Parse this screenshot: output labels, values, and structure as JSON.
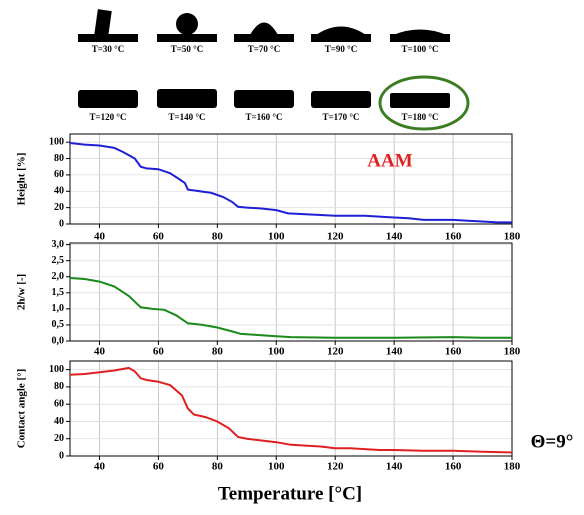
{
  "droplet_images": {
    "labels": [
      "T=30 °C",
      "T=50 °C",
      "T=70 °C",
      "T=90 °C",
      "T=100 °C",
      "T=120 °C",
      "T=140 °C",
      "T=160 °C",
      "T=170 °C",
      "T=180 °C"
    ]
  },
  "chart_data": [
    {
      "type": "line",
      "y_label": "Height [%]",
      "annotation": "AAM",
      "color": "#1f1fd6",
      "grid": true,
      "x": [
        30,
        35,
        40,
        45,
        48,
        52,
        54,
        56,
        60,
        64,
        67,
        69,
        70,
        74,
        78,
        82,
        85,
        87,
        90,
        95,
        100,
        104,
        110,
        120,
        130,
        135,
        140,
        145,
        150,
        155,
        160,
        165,
        170,
        175,
        180
      ],
      "values": [
        99,
        97,
        96,
        93,
        88,
        80,
        70,
        68,
        67,
        62,
        55,
        50,
        42,
        40,
        38,
        33,
        27,
        21,
        20,
        19,
        17,
        13,
        12,
        10,
        10,
        9,
        8,
        7,
        5,
        5,
        5,
        4,
        3,
        2,
        2
      ],
      "xlim": [
        30,
        180
      ],
      "xticks": [
        40,
        60,
        80,
        100,
        120,
        140,
        160,
        180
      ],
      "ylim": [
        0,
        110
      ],
      "yticks": [
        0,
        20,
        40,
        60,
        80,
        100
      ]
    },
    {
      "type": "line",
      "y_label": "2h/w [-]",
      "color": "#1a8a1a",
      "grid": true,
      "x": [
        30,
        35,
        40,
        45,
        50,
        54,
        58,
        62,
        66,
        70,
        75,
        80,
        85,
        88,
        95,
        100,
        105,
        120,
        140,
        160,
        170,
        180
      ],
      "values": [
        1.96,
        1.93,
        1.85,
        1.7,
        1.4,
        1.05,
        1.0,
        0.97,
        0.8,
        0.55,
        0.5,
        0.42,
        0.3,
        0.22,
        0.18,
        0.15,
        0.12,
        0.1,
        0.1,
        0.12,
        0.1,
        0.1
      ],
      "xlim": [
        30,
        180
      ],
      "xticks": [
        40,
        60,
        80,
        100,
        120,
        140,
        160,
        180
      ],
      "ylim": [
        0,
        3.05
      ],
      "yticks": [
        {
          "value": 0,
          "label": "0,0"
        },
        {
          "value": 0.5,
          "label": "0,5"
        },
        {
          "value": 1,
          "label": "1,0"
        },
        {
          "value": 1.5,
          "label": "1,5"
        },
        {
          "value": 2,
          "label": "2,0"
        },
        {
          "value": 2.5,
          "label": "2,5"
        },
        {
          "value": 3,
          "label": "3,0"
        }
      ]
    },
    {
      "type": "line",
      "y_label": "Contact angle [°]",
      "x_label": "Temperature [°C]",
      "annotation": "Θ=9°",
      "color": "#e02020",
      "grid": true,
      "x": [
        30,
        35,
        40,
        45,
        50,
        52,
        54,
        56,
        60,
        64,
        68,
        70,
        72,
        76,
        80,
        84,
        87,
        90,
        95,
        100,
        105,
        110,
        115,
        120,
        125,
        130,
        135,
        140,
        150,
        160,
        170,
        180
      ],
      "values": [
        94,
        95,
        97,
        99,
        102,
        98,
        90,
        88,
        86,
        82,
        70,
        55,
        48,
        45,
        40,
        32,
        22,
        20,
        18,
        16,
        13,
        12,
        11,
        9,
        9,
        8,
        7,
        7,
        6,
        6,
        5,
        4
      ],
      "xlim": [
        30,
        180
      ],
      "xticks": [
        40,
        60,
        80,
        100,
        120,
        140,
        160,
        180
      ],
      "ylim": [
        0,
        110
      ],
      "yticks": [
        0,
        20,
        40,
        60,
        80,
        100
      ]
    }
  ]
}
